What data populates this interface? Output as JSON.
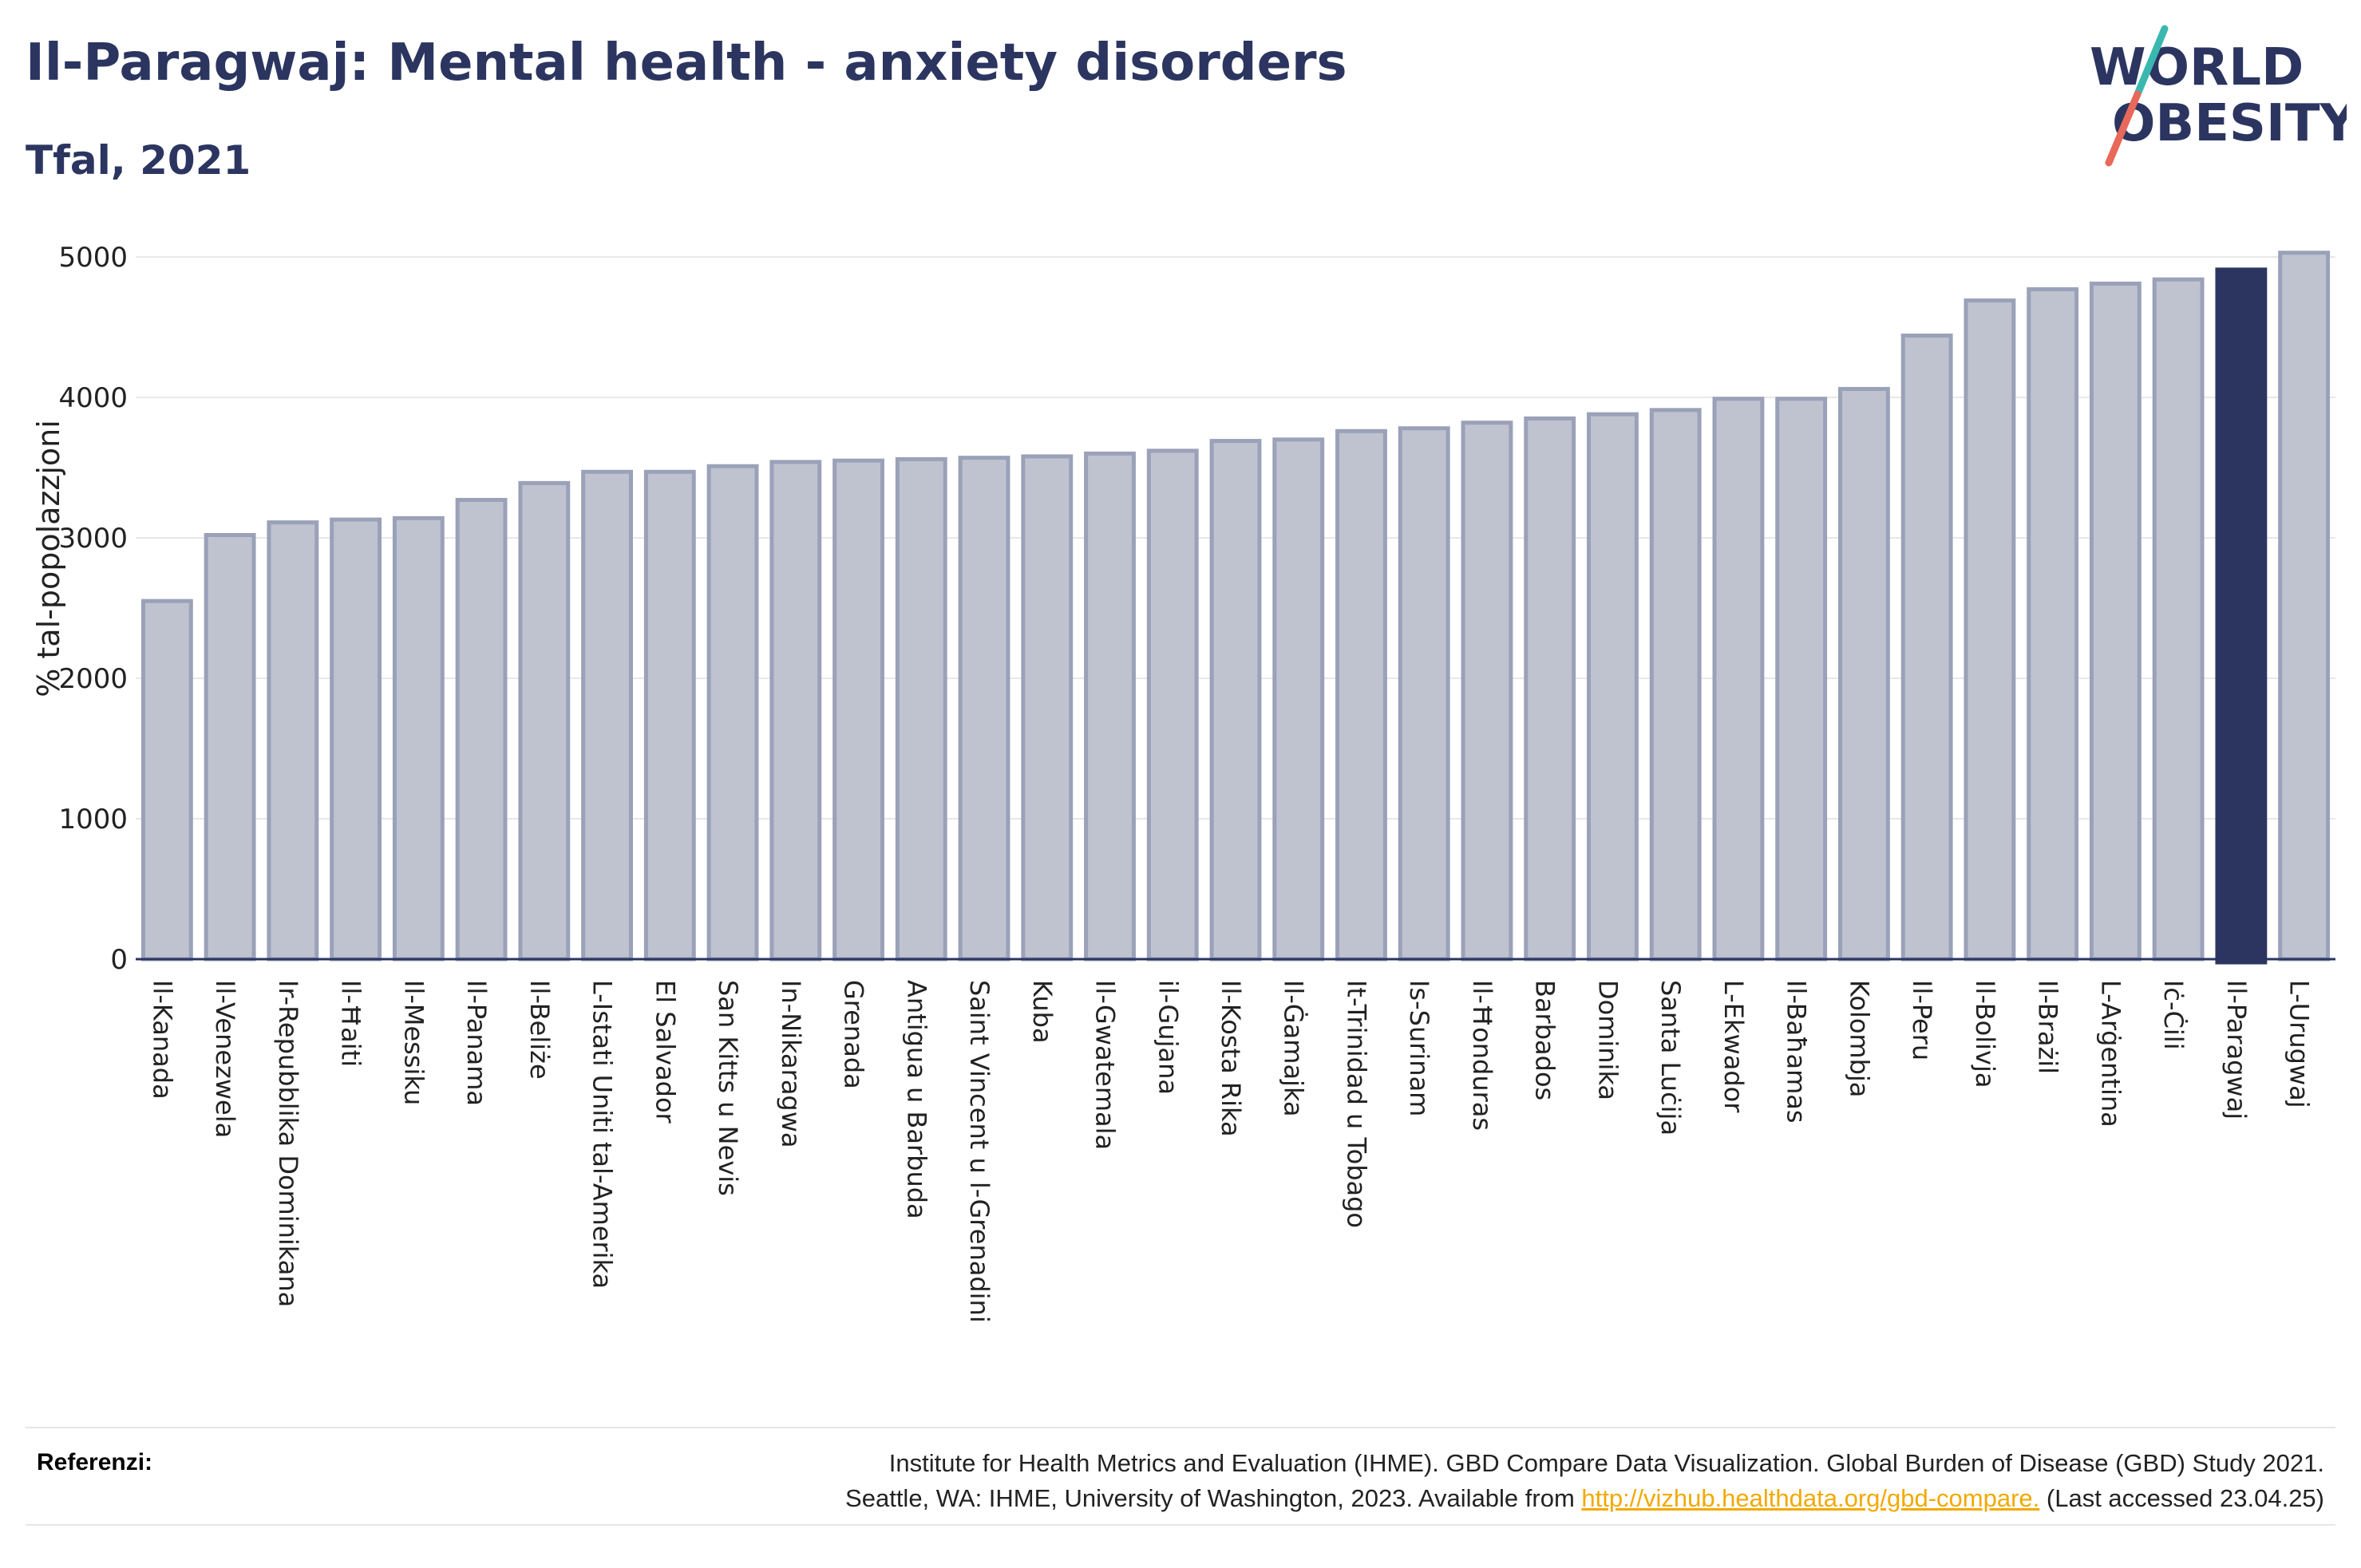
{
  "header": {
    "title": "Il-Paragwaj: Mental health - anxiety disorders",
    "subtitle": "Tfal, 2021"
  },
  "logo": {
    "line1": "WORLD",
    "line2": "OBESITY",
    "colors": {
      "text": "#2b3560",
      "slash_teal": "#3ab8b0",
      "slash_red": "#e8685a"
    }
  },
  "colors": {
    "bar_fill": "#bfc3d0",
    "bar_stroke": "#9aa1b8",
    "highlight": "#2b3560",
    "grid": "#e8e8e8",
    "axis": "#2b3560"
  },
  "chart_data": {
    "type": "bar",
    "title": "Il-Paragwaj: Mental health - anxiety disorders",
    "subtitle": "Tfal, 2021",
    "ylabel": "% tal-popolazzjoni",
    "xlabel": "",
    "ylim": [
      0,
      5000
    ],
    "yticks": [
      0,
      1000,
      2000,
      3000,
      4000,
      5000
    ],
    "grid": true,
    "highlight": "Il-Paragwaj",
    "categories": [
      "Il-Kanada",
      "Il-Venezwela",
      "Ir-Repubblika Dominikana",
      "Il-Ħaiti",
      "Il-Messiku",
      "Il-Panama",
      "Il-Beliże",
      "L-Istati Uniti tal-Amerika",
      "El Salvador",
      "San Kitts u Nevis",
      "In-Nikaragwa",
      "Grenada",
      "Antigua u Barbuda",
      "Saint Vincent u l-Grenadini",
      "Kuba",
      "Il-Gwatemala",
      "il-Gujana",
      "Il-Kosta Rika",
      "Il-Ġamajka",
      "It-Trinidad u Tobago",
      "Is-Surinam",
      "Il-Ħonduras",
      "Barbados",
      "Dominika",
      "Santa Luċija",
      "L-Ekwador",
      "Il-Baħamas",
      "Kolombja",
      "Il-Peru",
      "Il-Bolivja",
      "Il-Brażil",
      "L-Arġentina",
      "Iċ-Ċili",
      "Il-Paragwaj",
      "L-Urugwaj"
    ],
    "values": [
      2550,
      3020,
      3110,
      3130,
      3140,
      3270,
      3390,
      3470,
      3470,
      3510,
      3540,
      3550,
      3560,
      3570,
      3580,
      3600,
      3620,
      3690,
      3700,
      3760,
      3780,
      3820,
      3850,
      3880,
      3910,
      3990,
      3990,
      4060,
      4440,
      4690,
      4770,
      4810,
      4840,
      4910,
      5030
    ]
  },
  "references": {
    "label": "Referenzi:",
    "line1": "Institute for Health Metrics and Evaluation (IHME). GBD Compare Data Visualization. Global Burden of Disease (GBD) Study 2021.",
    "line2_prefix": "Seattle, WA: IHME, University of Washington, 2023. Available from ",
    "link": "http://vizhub.healthdata.org/gbd-compare.",
    "line2_suffix": " (Last accessed 23.04.25)"
  }
}
